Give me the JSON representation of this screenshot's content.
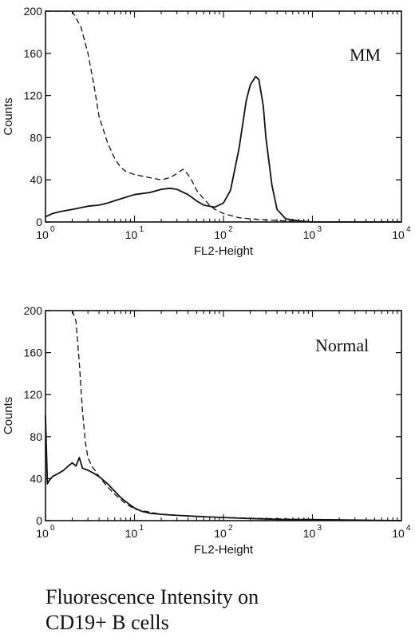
{
  "caption": {
    "line1": "Fluorescence Intensity on",
    "line2": "CD19+ B cells"
  },
  "chart_data": [
    {
      "type": "line",
      "annotation": "MM",
      "xlabel": "FL2-Height",
      "ylabel": "Counts",
      "x_scale": "log",
      "xlim": [
        1,
        10000
      ],
      "ylim": [
        0,
        200
      ],
      "x_tick_bases": [
        "10",
        "10",
        "10",
        "10",
        "10"
      ],
      "x_tick_exponents": [
        "0",
        "1",
        "2",
        "3",
        "4"
      ],
      "x_tick_values": [
        1,
        10,
        100,
        1000,
        10000
      ],
      "yticks": [
        0,
        40,
        80,
        120,
        160,
        200
      ],
      "series": [
        {
          "style": "solid",
          "x": [
            1,
            1.2,
            1.5,
            2,
            3,
            4,
            5,
            7,
            10,
            15,
            20,
            25,
            30,
            40,
            50,
            60,
            70,
            80,
            100,
            120,
            150,
            180,
            200,
            230,
            250,
            280,
            300,
            350,
            400,
            500,
            700,
            1000,
            10000
          ],
          "y": [
            5,
            8,
            10,
            12,
            15,
            16,
            18,
            22,
            26,
            28,
            31,
            32,
            31,
            26,
            20,
            16,
            15,
            14,
            18,
            30,
            70,
            115,
            130,
            138,
            135,
            110,
            80,
            35,
            12,
            3,
            1,
            0,
            0
          ]
        },
        {
          "style": "dashed",
          "x": [
            1,
            1.3,
            1.6,
            2,
            2.5,
            3,
            3.5,
            4,
            5,
            6,
            7,
            8,
            10,
            15,
            20,
            25,
            30,
            35,
            40,
            45,
            50,
            60,
            70,
            80,
            100,
            150,
            200,
            300,
            500,
            1000,
            10000
          ],
          "y": [
            200,
            200,
            200,
            200,
            185,
            160,
            130,
            100,
            75,
            60,
            52,
            48,
            45,
            42,
            40,
            42,
            46,
            50,
            45,
            38,
            30,
            22,
            16,
            12,
            8,
            4,
            3,
            2,
            1,
            0,
            0
          ]
        }
      ]
    },
    {
      "type": "line",
      "annotation": "Normal",
      "xlabel": "FL2-Height",
      "ylabel": "Counts",
      "x_scale": "log",
      "xlim": [
        1,
        10000
      ],
      "ylim": [
        0,
        200
      ],
      "x_tick_bases": [
        "10",
        "10",
        "10",
        "10",
        "10"
      ],
      "x_tick_exponents": [
        "0",
        "1",
        "2",
        "3",
        "4"
      ],
      "x_tick_values": [
        1,
        10,
        100,
        1000,
        10000
      ],
      "yticks": [
        0,
        40,
        80,
        120,
        160,
        200
      ],
      "series": [
        {
          "style": "solid",
          "x": [
            1,
            1.05,
            1.1,
            1.2,
            1.4,
            1.6,
            1.8,
            2,
            2.2,
            2.4,
            2.6,
            3,
            3.5,
            4,
            5,
            6,
            7,
            8,
            10,
            12,
            15,
            20,
            30,
            50,
            100,
            200,
            500,
            1000,
            10000
          ],
          "y": [
            100,
            35,
            38,
            42,
            45,
            48,
            52,
            55,
            52,
            60,
            50,
            48,
            45,
            42,
            35,
            28,
            22,
            18,
            12,
            9,
            7,
            6,
            5,
            4,
            3,
            2,
            1,
            1,
            0
          ]
        },
        {
          "style": "dashed",
          "x": [
            2,
            2.2,
            2.4,
            2.6,
            2.8,
            3,
            3.3,
            3.6,
            4,
            5,
            6,
            8,
            10,
            15,
            20,
            30,
            50,
            100,
            1000,
            10000
          ],
          "y": [
            200,
            190,
            150,
            105,
            75,
            60,
            52,
            48,
            42,
            32,
            25,
            16,
            11,
            8,
            6,
            5,
            4,
            3,
            1,
            0
          ]
        }
      ]
    }
  ]
}
